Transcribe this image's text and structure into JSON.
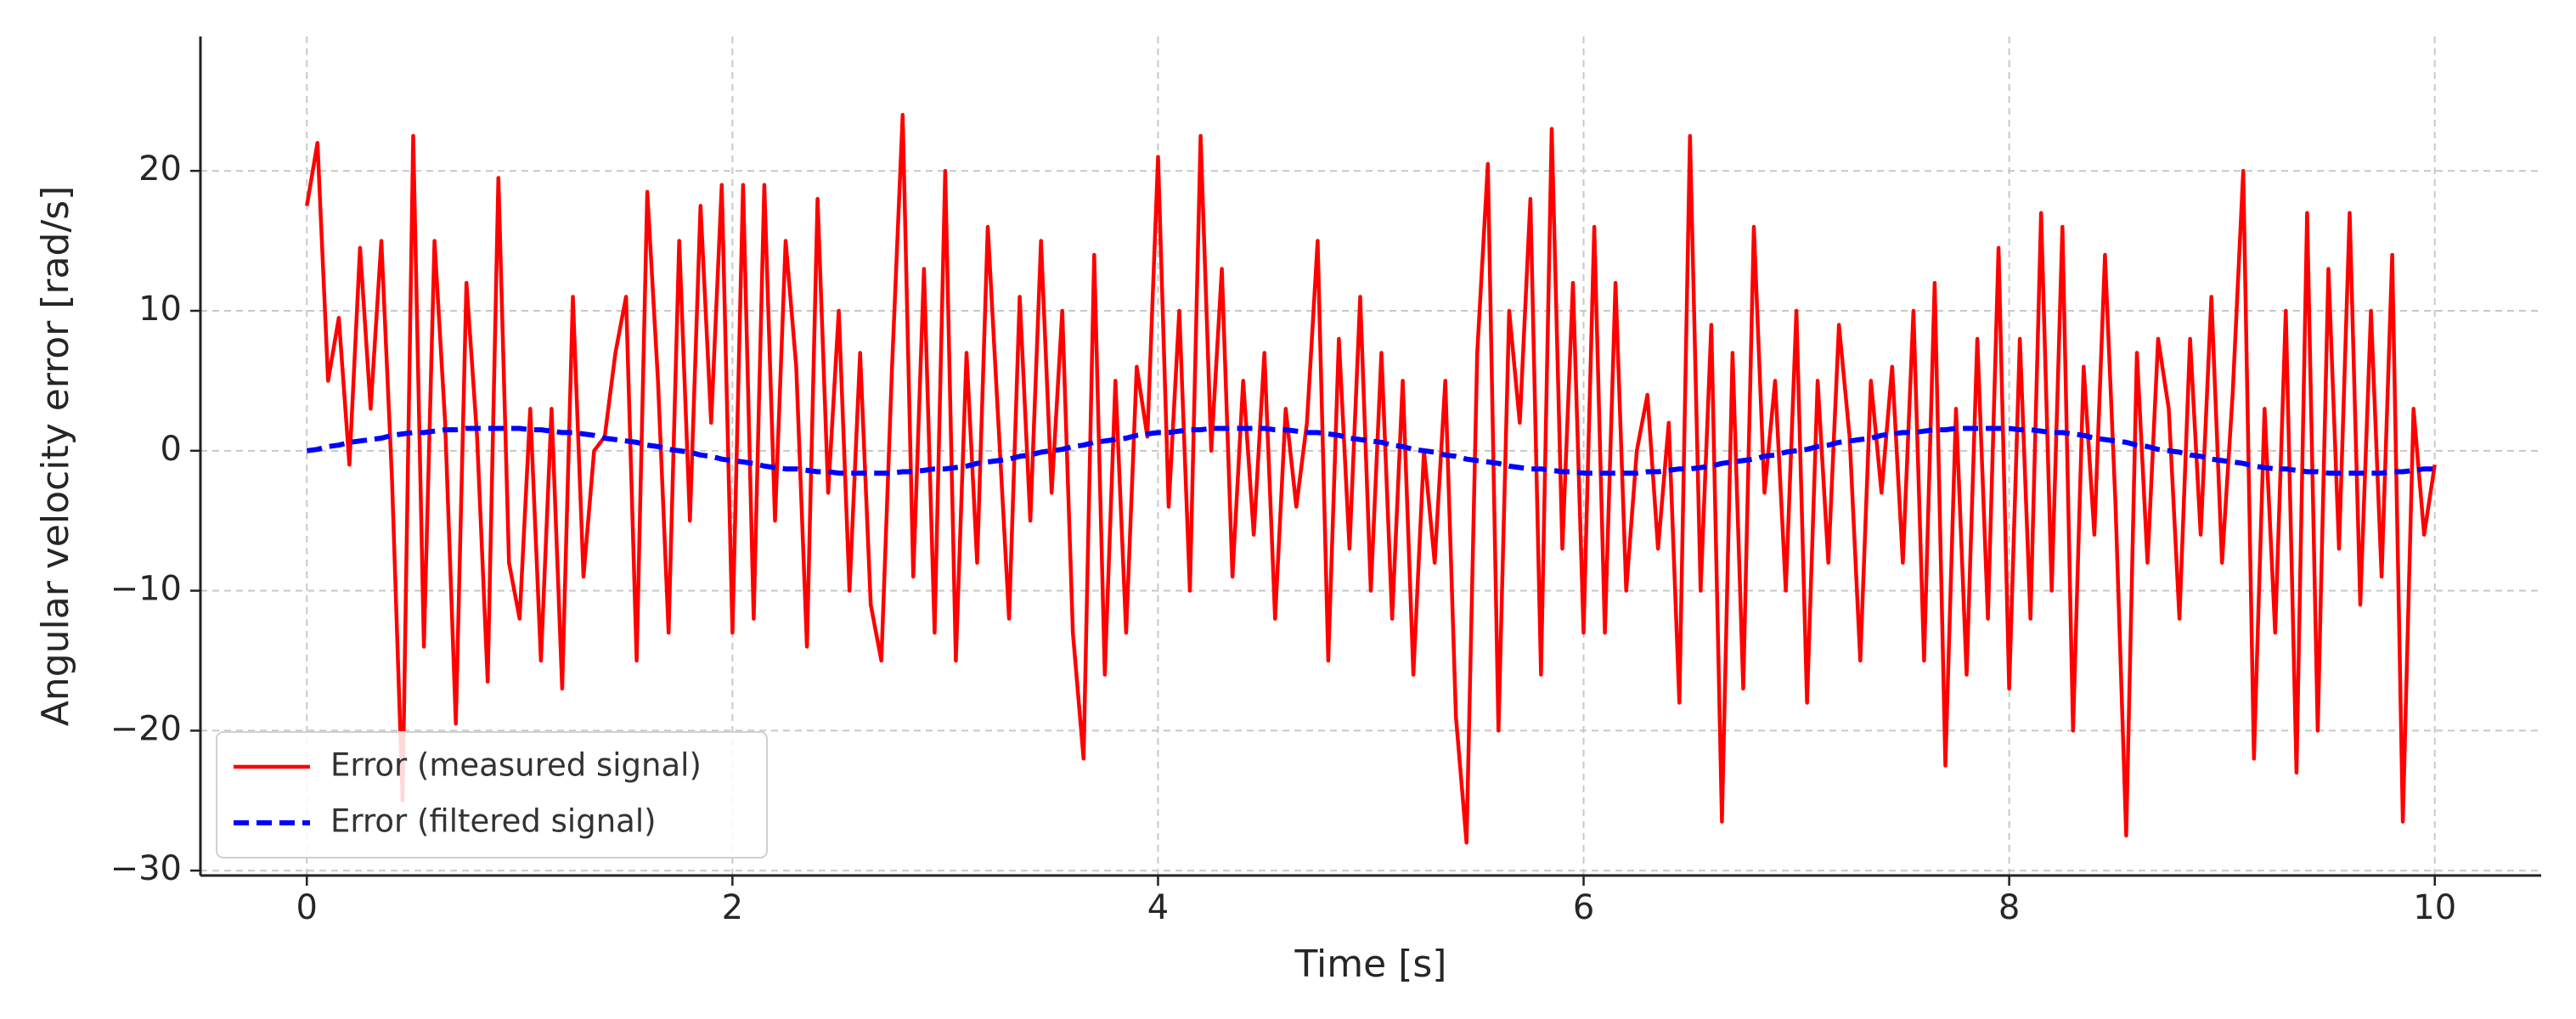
{
  "chart_data": {
    "type": "line",
    "xlabel": "Time [s]",
    "ylabel": "Angular velocity error [rad/s]",
    "x": [
      0,
      0.05,
      0.1,
      0.15,
      0.2,
      0.25,
      0.3,
      0.35,
      0.4,
      0.45,
      0.5,
      0.55,
      0.6,
      0.65,
      0.7,
      0.75,
      0.8,
      0.85,
      0.9,
      0.95,
      1,
      1.05,
      1.1,
      1.15,
      1.2,
      1.25,
      1.3,
      1.35,
      1.4,
      1.45,
      1.5,
      1.55,
      1.6,
      1.65,
      1.7,
      1.75,
      1.8,
      1.85,
      1.9,
      1.95,
      2,
      2.05,
      2.1,
      2.15,
      2.2,
      2.25,
      2.3,
      2.35,
      2.4,
      2.45,
      2.5,
      2.55,
      2.6,
      2.65,
      2.7,
      2.75,
      2.8,
      2.85,
      2.9,
      2.95,
      3,
      3.05,
      3.1,
      3.15,
      3.2,
      3.25,
      3.3,
      3.35,
      3.4,
      3.45,
      3.5,
      3.55,
      3.6,
      3.65,
      3.7,
      3.75,
      3.8,
      3.85,
      3.9,
      3.95,
      4,
      4.05,
      4.1,
      4.15,
      4.2,
      4.25,
      4.3,
      4.35,
      4.4,
      4.45,
      4.5,
      4.55,
      4.6,
      4.65,
      4.7,
      4.75,
      4.8,
      4.85,
      4.9,
      4.95,
      5,
      5.05,
      5.1,
      5.15,
      5.2,
      5.25,
      5.3,
      5.35,
      5.4,
      5.45,
      5.5,
      5.55,
      5.6,
      5.65,
      5.7,
      5.75,
      5.8,
      5.85,
      5.9,
      5.95,
      6,
      6.05,
      6.1,
      6.15,
      6.2,
      6.25,
      6.3,
      6.35,
      6.4,
      6.45,
      6.5,
      6.55,
      6.6,
      6.65,
      6.7,
      6.75,
      6.8,
      6.85,
      6.9,
      6.95,
      7,
      7.05,
      7.1,
      7.15,
      7.2,
      7.25,
      7.3,
      7.35,
      7.4,
      7.45,
      7.5,
      7.55,
      7.6,
      7.65,
      7.7,
      7.75,
      7.8,
      7.85,
      7.9,
      7.95,
      8,
      8.05,
      8.1,
      8.15,
      8.2,
      8.25,
      8.3,
      8.35,
      8.4,
      8.45,
      8.5,
      8.55,
      8.6,
      8.65,
      8.7,
      8.75,
      8.8,
      8.85,
      8.9,
      8.95,
      9,
      9.05,
      9.1,
      9.15,
      9.2,
      9.25,
      9.3,
      9.35,
      9.4,
      9.45,
      9.5,
      9.55,
      9.6,
      9.65,
      9.7,
      9.75,
      9.8,
      9.85,
      9.9,
      9.95,
      10
    ],
    "series": [
      {
        "name": "Error (measured signal)",
        "color": "#ff0000",
        "dash": false,
        "values": [
          17.5,
          22,
          5,
          9.5,
          -1,
          14.5,
          3,
          15,
          -2,
          -25,
          22.5,
          -14,
          15,
          2,
          -19.5,
          12,
          1,
          -16.5,
          19.5,
          -8,
          -12,
          3,
          -15,
          3,
          -17,
          11,
          -9,
          0,
          1,
          7,
          11,
          -15,
          18.5,
          5,
          -13,
          15,
          -5,
          17.5,
          2,
          19,
          -13,
          19,
          -12,
          19,
          -5,
          15,
          6,
          -14,
          18,
          -3,
          10,
          -10,
          7,
          -11,
          -15,
          6,
          24,
          -9,
          13,
          -13,
          20,
          -15,
          7,
          -8,
          16,
          2,
          -12,
          11,
          -5,
          15,
          -3,
          10,
          -13,
          -22,
          14,
          -16,
          5,
          -13,
          6,
          1,
          21,
          -4,
          10,
          -10,
          22.5,
          0,
          13,
          -9,
          5,
          -6,
          7,
          -12,
          3,
          -4,
          2,
          15,
          -15,
          8,
          -7,
          11,
          -10,
          7,
          -12,
          5,
          -16,
          0,
          -8,
          5,
          -19,
          -28,
          7,
          20.5,
          -20,
          10,
          2,
          18,
          -16,
          23,
          -7,
          12,
          -13,
          16,
          -13,
          12,
          -10,
          0,
          4,
          -7,
          2,
          -18,
          22.5,
          -10,
          9,
          -26.5,
          7,
          -17,
          16,
          -3,
          5,
          -10,
          10,
          -18,
          5,
          -8,
          9,
          1,
          -15,
          5,
          -3,
          6,
          -8,
          10,
          -15,
          12,
          -22.5,
          3,
          -16,
          8,
          -12,
          14.5,
          -17,
          8,
          -12,
          17,
          -10,
          16,
          -20,
          6,
          -6,
          14,
          -4,
          -27.5,
          7,
          -8,
          8,
          3,
          -12,
          8,
          -6,
          11,
          -8,
          4,
          20,
          -22,
          3,
          -13,
          10,
          -23,
          17,
          -20,
          13,
          -7,
          17,
          -11,
          10,
          -9,
          14,
          -26.5,
          3,
          -6,
          -1
        ]
      },
      {
        "name": "Error (filtered signal)",
        "color": "#0000ff",
        "dash": true,
        "values": [
          0,
          0.1,
          0.3,
          0.4,
          0.6,
          0.7,
          0.8,
          0.9,
          1.1,
          1.2,
          1.3,
          1.3,
          1.4,
          1.5,
          1.5,
          1.6,
          1.6,
          1.6,
          1.6,
          1.6,
          1.6,
          1.5,
          1.5,
          1.4,
          1.3,
          1.3,
          1.2,
          1.1,
          0.9,
          0.8,
          0.7,
          0.6,
          0.4,
          0.3,
          0.1,
          0,
          -0.1,
          -0.3,
          -0.4,
          -0.6,
          -0.7,
          -0.8,
          -0.9,
          -1.1,
          -1.2,
          -1.3,
          -1.3,
          -1.4,
          -1.5,
          -1.5,
          -1.6,
          -1.6,
          -1.6,
          -1.6,
          -1.6,
          -1.6,
          -1.5,
          -1.5,
          -1.4,
          -1.3,
          -1.3,
          -1.2,
          -1.1,
          -0.9,
          -0.8,
          -0.7,
          -0.6,
          -0.4,
          -0.3,
          -0.1,
          0,
          0.1,
          0.3,
          0.4,
          0.6,
          0.7,
          0.8,
          0.9,
          1.1,
          1.2,
          1.3,
          1.3,
          1.4,
          1.5,
          1.5,
          1.6,
          1.6,
          1.6,
          1.6,
          1.6,
          1.6,
          1.5,
          1.5,
          1.4,
          1.3,
          1.3,
          1.2,
          1.1,
          0.9,
          0.8,
          0.7,
          0.6,
          0.4,
          0.3,
          0.1,
          0,
          -0.1,
          -0.3,
          -0.4,
          -0.6,
          -0.7,
          -0.8,
          -0.9,
          -1.1,
          -1.2,
          -1.3,
          -1.3,
          -1.4,
          -1.5,
          -1.5,
          -1.6,
          -1.6,
          -1.6,
          -1.6,
          -1.6,
          -1.6,
          -1.5,
          -1.5,
          -1.4,
          -1.3,
          -1.3,
          -1.2,
          -1.1,
          -0.9,
          -0.8,
          -0.7,
          -0.6,
          -0.4,
          -0.3,
          -0.1,
          0,
          0.1,
          0.3,
          0.4,
          0.6,
          0.7,
          0.8,
          0.9,
          1.1,
          1.2,
          1.3,
          1.3,
          1.4,
          1.5,
          1.5,
          1.6,
          1.6,
          1.6,
          1.6,
          1.6,
          1.6,
          1.5,
          1.5,
          1.4,
          1.3,
          1.3,
          1.2,
          1.1,
          0.9,
          0.8,
          0.7,
          0.6,
          0.4,
          0.3,
          0.1,
          0,
          -0.1,
          -0.3,
          -0.4,
          -0.6,
          -0.7,
          -0.8,
          -0.9,
          -1.1,
          -1.2,
          -1.3,
          -1.3,
          -1.4,
          -1.5,
          -1.5,
          -1.6,
          -1.6,
          -1.6,
          -1.6,
          -1.6,
          -1.6,
          -1.5,
          -1.5,
          -1.4,
          -1.3,
          -1.3
        ]
      }
    ],
    "xlim": [
      -0.5,
      10.5
    ],
    "xticks": [
      0,
      2,
      4,
      6,
      8,
      10
    ],
    "ylim": [
      -30.35,
      29.6
    ],
    "yticks": [
      {
        "value": -30,
        "label": "−30"
      },
      {
        "value": -20,
        "label": "−20"
      },
      {
        "value": -10,
        "label": "−10"
      },
      0,
      10,
      20
    ],
    "grid": true,
    "legend": "lower left"
  }
}
